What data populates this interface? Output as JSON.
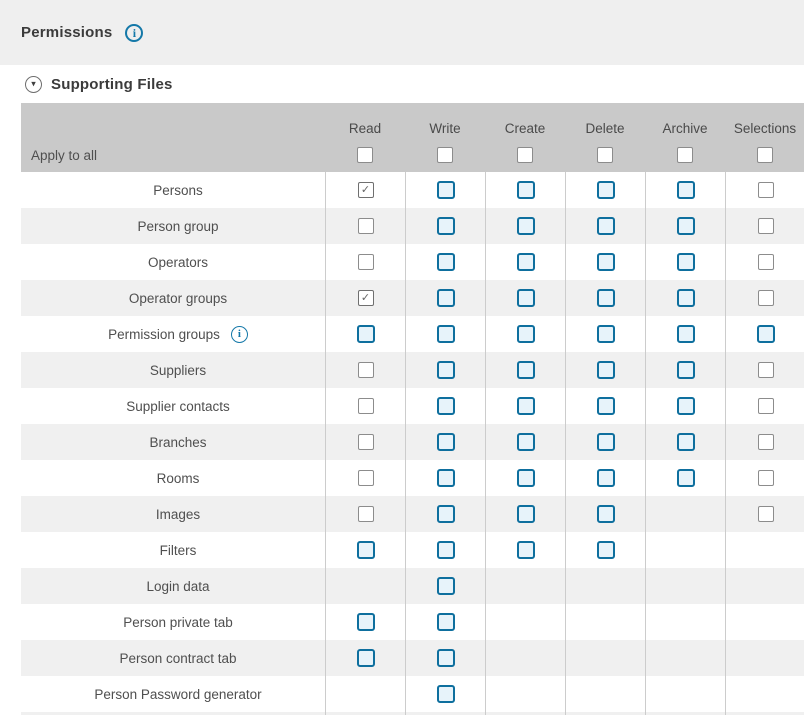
{
  "header": {
    "title": "Permissions"
  },
  "section": {
    "title": "Supporting Files"
  },
  "icons": {
    "info": "i",
    "triangle_down": "▾",
    "checkmark": "✓"
  },
  "colors": {
    "top_strip": "#efefef",
    "table_header_gray": "#c9c9c9",
    "row_alt_gray": "#f0f0f0",
    "accent_blue": "#1478a8",
    "checkbox_blue_border": "#0e6f9e",
    "checkbox_blue_fill": "#e7f3fa"
  },
  "table": {
    "columns": [
      "Read",
      "Write",
      "Create",
      "Delete",
      "Archive",
      "Selections"
    ],
    "apply_row": {
      "label": "Apply to all",
      "cells": [
        "plain",
        "plain",
        "plain",
        "plain",
        "plain",
        "plain"
      ]
    },
    "rows": [
      {
        "label": "Persons",
        "info": false,
        "cells": [
          "checked",
          "blue",
          "blue",
          "blue",
          "blue",
          "plain"
        ]
      },
      {
        "label": "Person group",
        "info": false,
        "cells": [
          "plain",
          "blue",
          "blue",
          "blue",
          "blue",
          "plain"
        ]
      },
      {
        "label": "Operators",
        "info": false,
        "cells": [
          "plain",
          "blue",
          "blue",
          "blue",
          "blue",
          "plain"
        ]
      },
      {
        "label": "Operator groups",
        "info": false,
        "cells": [
          "checked",
          "blue",
          "blue",
          "blue",
          "blue",
          "plain"
        ]
      },
      {
        "label": "Permission groups",
        "info": true,
        "cells": [
          "blue",
          "blue",
          "blue",
          "blue",
          "blue",
          "blue"
        ]
      },
      {
        "label": "Suppliers",
        "info": false,
        "cells": [
          "plain",
          "blue",
          "blue",
          "blue",
          "blue",
          "plain"
        ]
      },
      {
        "label": "Supplier contacts",
        "info": false,
        "cells": [
          "plain",
          "blue",
          "blue",
          "blue",
          "blue",
          "plain"
        ]
      },
      {
        "label": "Branches",
        "info": false,
        "cells": [
          "plain",
          "blue",
          "blue",
          "blue",
          "blue",
          "plain"
        ]
      },
      {
        "label": "Rooms",
        "info": false,
        "cells": [
          "plain",
          "blue",
          "blue",
          "blue",
          "blue",
          "plain"
        ]
      },
      {
        "label": "Images",
        "info": false,
        "cells": [
          "plain",
          "blue",
          "blue",
          "blue",
          "empty",
          "plain"
        ]
      },
      {
        "label": "Filters",
        "info": false,
        "cells": [
          "blue",
          "blue",
          "blue",
          "blue",
          "empty",
          "empty"
        ]
      },
      {
        "label": "Login data",
        "info": false,
        "cells": [
          "empty",
          "blue",
          "empty",
          "empty",
          "empty",
          "empty"
        ]
      },
      {
        "label": "Person private tab",
        "info": false,
        "cells": [
          "blue",
          "blue",
          "empty",
          "empty",
          "empty",
          "empty"
        ]
      },
      {
        "label": "Person contract tab",
        "info": false,
        "cells": [
          "blue",
          "blue",
          "empty",
          "empty",
          "empty",
          "empty"
        ]
      },
      {
        "label": "Person Password generator",
        "info": false,
        "cells": [
          "empty",
          "blue",
          "empty",
          "empty",
          "empty",
          "empty"
        ]
      }
    ]
  }
}
